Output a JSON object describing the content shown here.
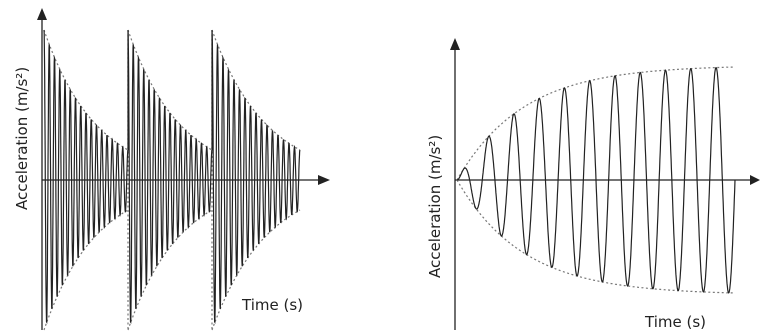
{
  "chart_data": [
    {
      "type": "line",
      "title": "",
      "xlabel": "Time (s)",
      "ylabel": "Acceleration (m/s²)",
      "description_of_shape": "repeated impulse response: oscillation with exponentially decaying envelope, restarting three times",
      "series": [
        {
          "name": "",
          "bursts": 3,
          "envelope": "exponential-decay",
          "start_amplitude": 1.0,
          "end_amplitude": 0.2,
          "oscillations_per_burst": 16
        }
      ],
      "grid": false,
      "legend": "none"
    },
    {
      "type": "line",
      "title": "",
      "xlabel": "Time (s)",
      "ylabel": "Acceleration (m/s²)",
      "description_of_shape": "oscillation with amplitude growing and saturating",
      "series": [
        {
          "name": "",
          "envelope": "saturating-growth",
          "start_amplitude": 0.0,
          "end_amplitude": 1.0,
          "oscillations": 11
        }
      ],
      "grid": false,
      "legend": "none"
    }
  ],
  "colors": {
    "signal": "#222222",
    "envelope": "#777777"
  }
}
